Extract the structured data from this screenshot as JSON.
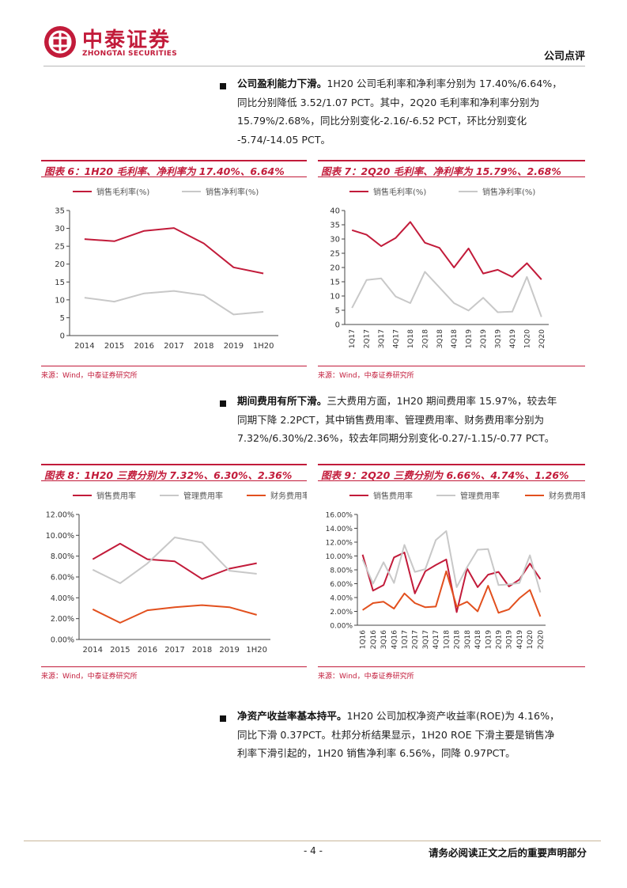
{
  "header": {
    "logo_cn": "中泰证券",
    "logo_en": "ZHONGTAI SECURITIES",
    "report_type": "公司点评"
  },
  "paragraphs": [
    {
      "heading": "公司盈利能力下滑。",
      "lines": [
        "1H20 公司毛利率和净利率分别为 17.40%/6.64%，",
        "同比分别降低 3.52/1.07 PCT。其中，2Q20 毛利率和净利率分别为",
        "15.79%/2.68%，同比分别变化-2.16/-6.52 PCT，环比分别变化",
        "-5.74/-14.05 PCT。"
      ]
    },
    {
      "heading": "期间费用有所下滑。",
      "lines": [
        "三大费用方面，1H20 期间费用率 15.97%，较去年",
        "同期下降 2.2PCT，其中销售费用率、管理费用率、财务费用率分别为",
        "7.32%/6.30%/2.36%，较去年同期分别变化-0.27/-1.15/-0.77 PCT。"
      ]
    },
    {
      "heading": "净资产收益率基本持平。",
      "lines": [
        "1H20 公司加权净资产收益率(ROE)为 4.16%，",
        "同比下滑 0.37PCT。杜邦分析结果显示，1H20 ROE 下滑主要是销售净",
        "利率下滑引起的，1H20 销售净利率 6.56%，同降 0.97PCT。"
      ]
    }
  ],
  "figures": [
    {
      "title": "图表 6：1H20 毛利率、净利率为 17.40%、6.64%",
      "source": "来源：Wind，中泰证券研究所"
    },
    {
      "title": "图表 7：2Q20 毛利率、净利率为 15.79%、2.68%",
      "source": "来源：Wind，中泰证券研究所"
    },
    {
      "title": "图表 8：1H20 三费分别为 7.32%、6.30%、2.36%",
      "source": "来源：Wind，中泰证券研究所"
    },
    {
      "title": "图表 9：2Q20 三费分别为 6.66%、4.74%、1.26%",
      "source": "来源：Wind，中泰证券研究所"
    }
  ],
  "chart_data": [
    {
      "type": "line",
      "categories": [
        "2014",
        "2015",
        "2016",
        "2017",
        "2018",
        "2019",
        "1H20"
      ],
      "ylim": [
        0,
        35
      ],
      "yticks": [
        0,
        5,
        10,
        15,
        20,
        25,
        30,
        35
      ],
      "ytick_labels": [
        "0",
        "5",
        "10",
        "15",
        "20",
        "25",
        "30",
        "35"
      ],
      "legend_position": "top-left",
      "grid": false,
      "series": [
        {
          "name": "销售毛利率(%)",
          "color": "#c21b3a",
          "values": [
            27.0,
            26.4,
            29.3,
            30.1,
            25.8,
            19.1,
            17.4
          ]
        },
        {
          "name": "销售净利率(%)",
          "color": "#c8c8c8",
          "values": [
            10.6,
            9.5,
            11.8,
            12.5,
            11.3,
            5.9,
            6.64
          ]
        }
      ]
    },
    {
      "type": "line",
      "categories": [
        "1Q17",
        "2Q17",
        "3Q17",
        "4Q17",
        "1Q18",
        "2Q18",
        "3Q18",
        "4Q18",
        "1Q19",
        "2Q19",
        "3Q19",
        "4Q19",
        "1Q20",
        "2Q20"
      ],
      "ylim": [
        0,
        40
      ],
      "yticks": [
        0,
        5,
        10,
        15,
        20,
        25,
        30,
        35,
        40
      ],
      "ytick_labels": [
        "0",
        "5",
        "10",
        "15",
        "20",
        "25",
        "30",
        "35",
        "40"
      ],
      "legend_position": "top-left",
      "grid": false,
      "series": [
        {
          "name": "销售毛利率(%)",
          "color": "#c21b3a",
          "values": [
            33.1,
            31.5,
            27.5,
            30.4,
            36.0,
            28.7,
            26.9,
            20.0,
            26.7,
            17.9,
            19.2,
            16.7,
            21.5,
            15.79
          ]
        },
        {
          "name": "销售净利率(%)",
          "color": "#c8c8c8",
          "values": [
            5.8,
            15.6,
            16.2,
            9.8,
            7.5,
            18.5,
            13.0,
            7.5,
            4.9,
            9.4,
            4.3,
            4.5,
            16.7,
            2.68
          ]
        }
      ]
    },
    {
      "type": "line",
      "categories": [
        "2014",
        "2015",
        "2016",
        "2017",
        "2018",
        "2019",
        "1H20"
      ],
      "ylim": [
        0,
        12
      ],
      "yticks": [
        0,
        2,
        4,
        6,
        8,
        10,
        12
      ],
      "ytick_labels": [
        "0.00%",
        "2.00%",
        "4.00%",
        "6.00%",
        "8.00%",
        "10.00%",
        "12.00%"
      ],
      "legend_position": "top-left",
      "grid": false,
      "series": [
        {
          "name": "销售费用率",
          "color": "#c21b3a",
          "values": [
            7.7,
            9.2,
            7.7,
            7.5,
            5.8,
            6.8,
            7.32
          ]
        },
        {
          "name": "管理费用率",
          "color": "#c8c8c8",
          "values": [
            6.7,
            5.4,
            7.3,
            9.8,
            9.3,
            6.6,
            6.3
          ]
        },
        {
          "name": "财务费用率",
          "color": "#e2501e",
          "values": [
            2.9,
            1.6,
            2.8,
            3.1,
            3.3,
            3.1,
            2.36
          ]
        }
      ]
    },
    {
      "type": "line",
      "categories": [
        "1Q16",
        "2Q16",
        "3Q16",
        "4Q16",
        "1Q17",
        "2Q17",
        "3Q17",
        "4Q17",
        "1Q18",
        "2Q18",
        "3Q18",
        "4Q18",
        "1Q19",
        "2Q19",
        "3Q19",
        "4Q19",
        "1Q20",
        "2Q20"
      ],
      "ylim": [
        0,
        16
      ],
      "yticks": [
        0,
        2,
        4,
        6,
        8,
        10,
        12,
        14,
        16
      ],
      "ytick_labels": [
        "0.00%",
        "2.00%",
        "4.00%",
        "6.00%",
        "8.00%",
        "10.00%",
        "12.00%",
        "14.00%",
        "16.00%"
      ],
      "legend_position": "top-left",
      "grid": false,
      "series": [
        {
          "name": "销售费用率",
          "color": "#c21b3a",
          "values": [
            10.2,
            5.0,
            5.8,
            9.8,
            10.5,
            4.6,
            7.8,
            8.7,
            9.5,
            1.9,
            8.2,
            5.5,
            7.3,
            7.7,
            5.6,
            6.6,
            8.9,
            6.66
          ]
        },
        {
          "name": "管理费用率",
          "color": "#c8c8c8",
          "values": [
            9.5,
            6.0,
            9.1,
            6.1,
            11.6,
            7.7,
            8.1,
            12.3,
            13.6,
            5.5,
            8.4,
            10.9,
            11.0,
            5.8,
            5.9,
            6.1,
            10.1,
            4.74
          ]
        },
        {
          "name": "财务费用率",
          "color": "#e2501e",
          "values": [
            2.2,
            3.2,
            3.4,
            2.4,
            4.6,
            3.2,
            2.6,
            2.7,
            7.8,
            2.7,
            3.4,
            2.0,
            5.7,
            1.8,
            2.3,
            3.9,
            5.1,
            1.26
          ]
        }
      ]
    }
  ],
  "footer": {
    "page_number": "- 4 -",
    "disclaimer": "请务必阅读正文之后的重要声明部分"
  }
}
